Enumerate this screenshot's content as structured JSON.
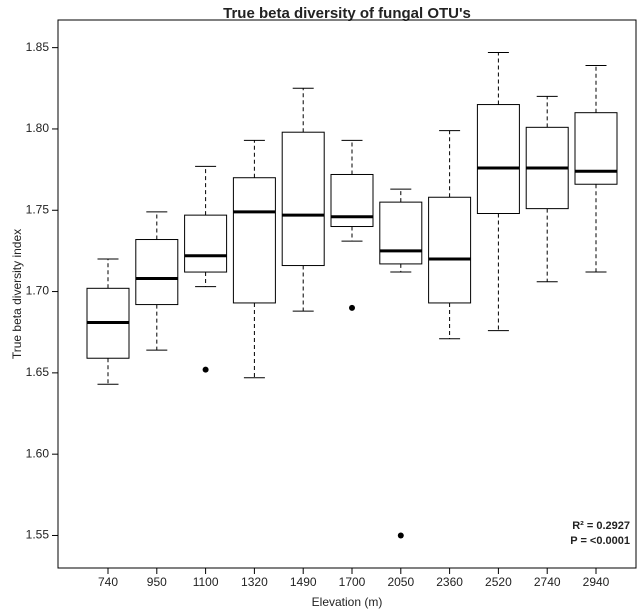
{
  "chart_data": {
    "type": "box",
    "title": "True beta diversity of fungal OTU's",
    "x_label": "Elevation (m)",
    "y_label": "True beta diversity index",
    "categories": [
      "740",
      "950",
      "1100",
      "1320",
      "1490",
      "1700",
      "2050",
      "2360",
      "2520",
      "2740",
      "2940"
    ],
    "boxes": [
      {
        "whislo": 1.643,
        "q1": 1.659,
        "med": 1.681,
        "q3": 1.702,
        "whishi": 1.72,
        "fliers": []
      },
      {
        "whislo": 1.664,
        "q1": 1.692,
        "med": 1.708,
        "q3": 1.732,
        "whishi": 1.749,
        "fliers": []
      },
      {
        "whislo": 1.703,
        "q1": 1.712,
        "med": 1.722,
        "q3": 1.747,
        "whishi": 1.777,
        "fliers": [
          1.652
        ]
      },
      {
        "whislo": 1.647,
        "q1": 1.693,
        "med": 1.749,
        "q3": 1.77,
        "whishi": 1.793,
        "fliers": []
      },
      {
        "whislo": 1.688,
        "q1": 1.716,
        "med": 1.747,
        "q3": 1.798,
        "whishi": 1.825,
        "fliers": []
      },
      {
        "whislo": 1.731,
        "q1": 1.74,
        "med": 1.746,
        "q3": 1.772,
        "whishi": 1.793,
        "fliers": [
          1.69
        ]
      },
      {
        "whislo": 1.712,
        "q1": 1.717,
        "med": 1.725,
        "q3": 1.755,
        "whishi": 1.763,
        "fliers": [
          1.55
        ]
      },
      {
        "whislo": 1.671,
        "q1": 1.693,
        "med": 1.72,
        "q3": 1.758,
        "whishi": 1.799,
        "fliers": []
      },
      {
        "whislo": 1.676,
        "q1": 1.748,
        "med": 1.776,
        "q3": 1.815,
        "whishi": 1.847,
        "fliers": []
      },
      {
        "whislo": 1.706,
        "q1": 1.751,
        "med": 1.776,
        "q3": 1.801,
        "whishi": 1.82,
        "fliers": []
      },
      {
        "whislo": 1.712,
        "q1": 1.766,
        "med": 1.774,
        "q3": 1.81,
        "whishi": 1.839,
        "fliers": []
      }
    ],
    "color": "#000000",
    "ylim": [
      1.53,
      1.867
    ],
    "yticks": [
      {
        "value": 1.55,
        "label": "1.55"
      },
      {
        "value": 1.6,
        "label": "1.60"
      },
      {
        "value": 1.65,
        "label": "1.65"
      },
      {
        "value": 1.7,
        "label": "1.70"
      },
      {
        "value": 1.75,
        "label": "1.75"
      },
      {
        "value": 1.8,
        "label": "1.80"
      },
      {
        "value": 1.85,
        "label": "1.85"
      }
    ],
    "annotations": [
      "R² = 0.2927",
      "P = <0.0001"
    ],
    "grid": false
  }
}
